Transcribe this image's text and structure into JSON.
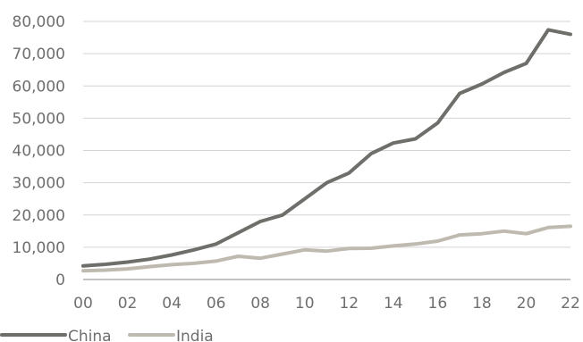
{
  "chart_data": {
    "type": "line",
    "title": "",
    "xlabel": "",
    "ylabel": "",
    "x": [
      2000,
      2001,
      2002,
      2003,
      2004,
      2005,
      2006,
      2007,
      2008,
      2009,
      2010,
      2011,
      2012,
      2013,
      2014,
      2015,
      2016,
      2017,
      2018,
      2019,
      2020,
      2021,
      2022
    ],
    "x_tick_labels": [
      "00",
      "02",
      "04",
      "06",
      "08",
      "10",
      "12",
      "14",
      "16",
      "18",
      "20",
      "22"
    ],
    "y_tick_labels": [
      "0",
      "10,000",
      "20,000",
      "30,000",
      "40,000",
      "50,000",
      "60,000",
      "70,000",
      "80,000"
    ],
    "ylim": [
      0,
      80000
    ],
    "grid": "horizontal",
    "legend_position": "bottom-left",
    "series": [
      {
        "name": "China",
        "color": "#6e6e6a",
        "values": [
          4200,
          4700,
          5400,
          6300,
          7600,
          9200,
          11000,
          14500,
          18000,
          20000,
          25000,
          30000,
          33000,
          39000,
          42300,
          43600,
          48500,
          57700,
          60600,
          64200,
          67000,
          77400,
          76000
        ]
      },
      {
        "name": "India",
        "color": "#bfbab0",
        "values": [
          2700,
          2900,
          3300,
          4000,
          4600,
          5000,
          5700,
          7200,
          6600,
          7900,
          9200,
          8800,
          9600,
          9700,
          10400,
          11000,
          11900,
          13800,
          14200,
          15000,
          14200,
          16100,
          16500
        ]
      }
    ]
  }
}
